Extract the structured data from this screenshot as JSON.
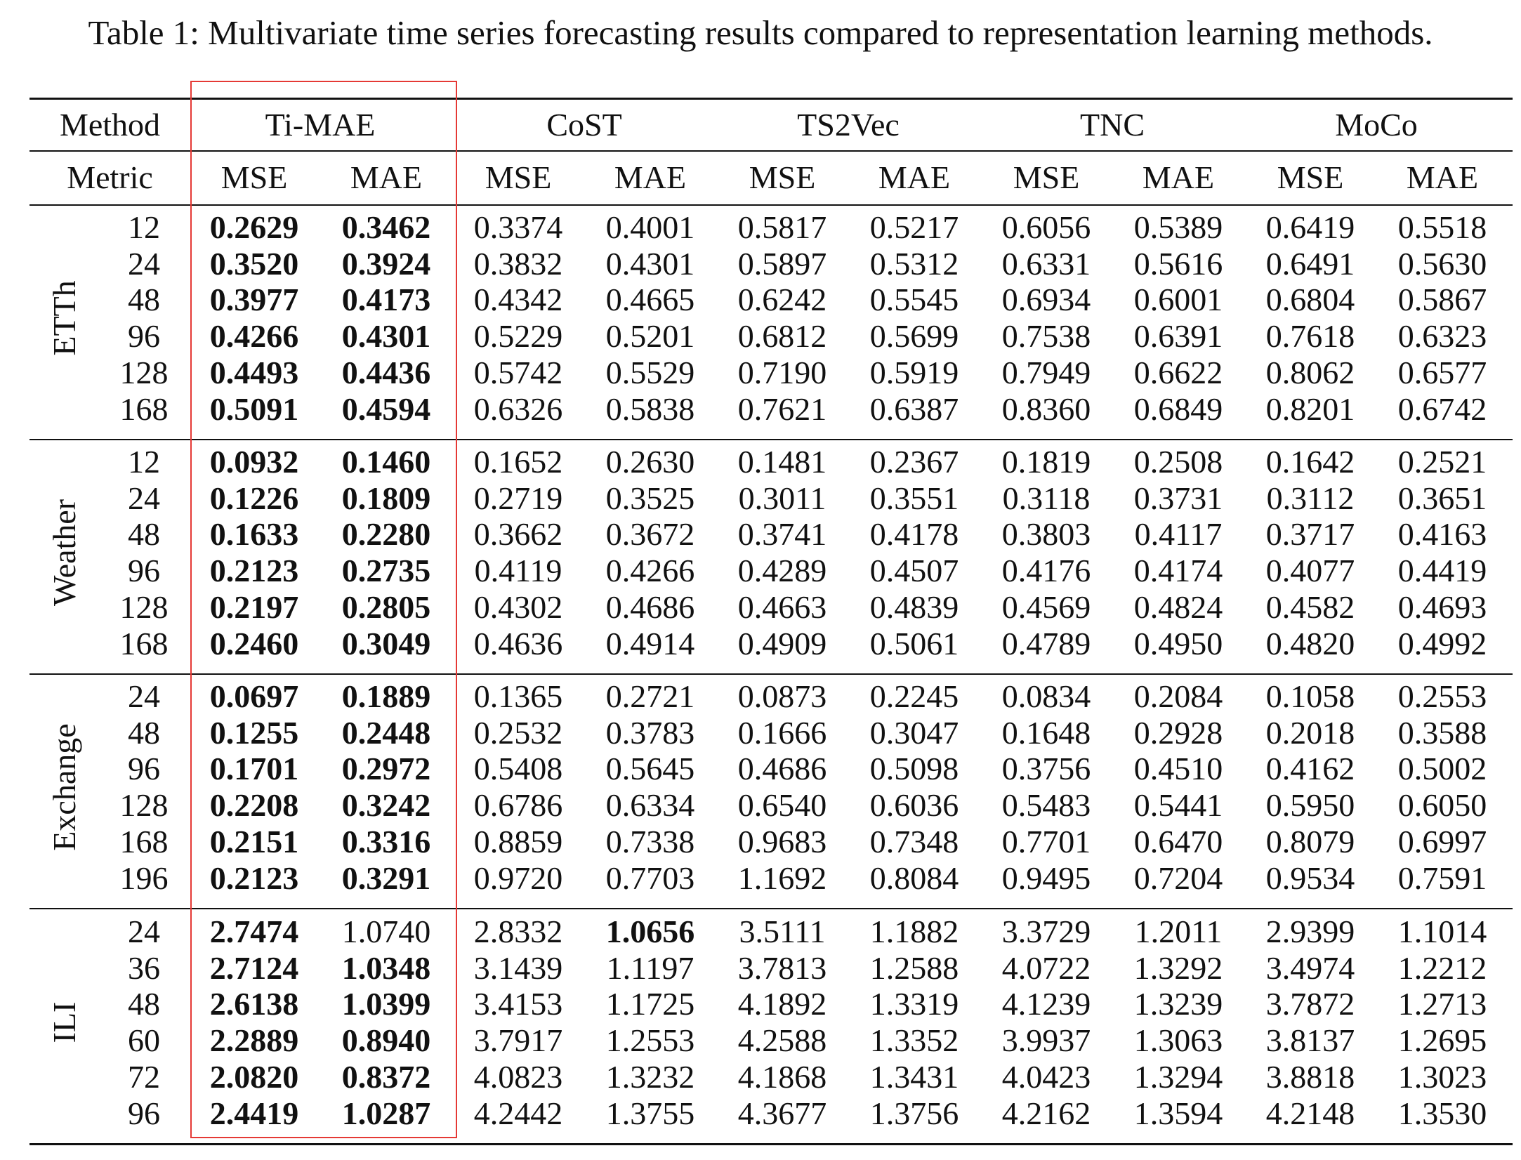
{
  "caption": "Table 1: Multivariate time series forecasting results compared to representation learning methods.",
  "header": {
    "method_label": "Method",
    "metric_label": "Metric",
    "methods": [
      "Ti-MAE",
      "CoST",
      "TS2Vec",
      "TNC",
      "MoCo"
    ],
    "metrics": [
      "MSE",
      "MAE",
      "MSE",
      "MAE",
      "MSE",
      "MAE",
      "MSE",
      "MAE",
      "MSE",
      "MAE"
    ]
  },
  "groups": [
    {
      "dataset": "ETTh",
      "rows": [
        {
          "horizon": "12",
          "values": [
            "0.2629",
            "0.3462",
            "0.3374",
            "0.4001",
            "0.5817",
            "0.5217",
            "0.6056",
            "0.5389",
            "0.6419",
            "0.5518"
          ],
          "bold": [
            0,
            1
          ]
        },
        {
          "horizon": "24",
          "values": [
            "0.3520",
            "0.3924",
            "0.3832",
            "0.4301",
            "0.5897",
            "0.5312",
            "0.6331",
            "0.5616",
            "0.6491",
            "0.5630"
          ],
          "bold": [
            0,
            1
          ]
        },
        {
          "horizon": "48",
          "values": [
            "0.3977",
            "0.4173",
            "0.4342",
            "0.4665",
            "0.6242",
            "0.5545",
            "0.6934",
            "0.6001",
            "0.6804",
            "0.5867"
          ],
          "bold": [
            0,
            1
          ]
        },
        {
          "horizon": "96",
          "values": [
            "0.4266",
            "0.4301",
            "0.5229",
            "0.5201",
            "0.6812",
            "0.5699",
            "0.7538",
            "0.6391",
            "0.7618",
            "0.6323"
          ],
          "bold": [
            0,
            1
          ]
        },
        {
          "horizon": "128",
          "values": [
            "0.4493",
            "0.4436",
            "0.5742",
            "0.5529",
            "0.7190",
            "0.5919",
            "0.7949",
            "0.6622",
            "0.8062",
            "0.6577"
          ],
          "bold": [
            0,
            1
          ]
        },
        {
          "horizon": "168",
          "values": [
            "0.5091",
            "0.4594",
            "0.6326",
            "0.5838",
            "0.7621",
            "0.6387",
            "0.8360",
            "0.6849",
            "0.8201",
            "0.6742"
          ],
          "bold": [
            0,
            1
          ]
        }
      ]
    },
    {
      "dataset": "Weather",
      "rows": [
        {
          "horizon": "12",
          "values": [
            "0.0932",
            "0.1460",
            "0.1652",
            "0.2630",
            "0.1481",
            "0.2367",
            "0.1819",
            "0.2508",
            "0.1642",
            "0.2521"
          ],
          "bold": [
            0,
            1
          ]
        },
        {
          "horizon": "24",
          "values": [
            "0.1226",
            "0.1809",
            "0.2719",
            "0.3525",
            "0.3011",
            "0.3551",
            "0.3118",
            "0.3731",
            "0.3112",
            "0.3651"
          ],
          "bold": [
            0,
            1
          ]
        },
        {
          "horizon": "48",
          "values": [
            "0.1633",
            "0.2280",
            "0.3662",
            "0.3672",
            "0.3741",
            "0.4178",
            "0.3803",
            "0.4117",
            "0.3717",
            "0.4163"
          ],
          "bold": [
            0,
            1
          ]
        },
        {
          "horizon": "96",
          "values": [
            "0.2123",
            "0.2735",
            "0.4119",
            "0.4266",
            "0.4289",
            "0.4507",
            "0.4176",
            "0.4174",
            "0.4077",
            "0.4419"
          ],
          "bold": [
            0,
            1
          ]
        },
        {
          "horizon": "128",
          "values": [
            "0.2197",
            "0.2805",
            "0.4302",
            "0.4686",
            "0.4663",
            "0.4839",
            "0.4569",
            "0.4824",
            "0.4582",
            "0.4693"
          ],
          "bold": [
            0,
            1
          ]
        },
        {
          "horizon": "168",
          "values": [
            "0.2460",
            "0.3049",
            "0.4636",
            "0.4914",
            "0.4909",
            "0.5061",
            "0.4789",
            "0.4950",
            "0.4820",
            "0.4992"
          ],
          "bold": [
            0,
            1
          ]
        }
      ]
    },
    {
      "dataset": "Exchange",
      "rows": [
        {
          "horizon": "24",
          "values": [
            "0.0697",
            "0.1889",
            "0.1365",
            "0.2721",
            "0.0873",
            "0.2245",
            "0.0834",
            "0.2084",
            "0.1058",
            "0.2553"
          ],
          "bold": [
            0,
            1
          ]
        },
        {
          "horizon": "48",
          "values": [
            "0.1255",
            "0.2448",
            "0.2532",
            "0.3783",
            "0.1666",
            "0.3047",
            "0.1648",
            "0.2928",
            "0.2018",
            "0.3588"
          ],
          "bold": [
            0,
            1
          ]
        },
        {
          "horizon": "96",
          "values": [
            "0.1701",
            "0.2972",
            "0.5408",
            "0.5645",
            "0.4686",
            "0.5098",
            "0.3756",
            "0.4510",
            "0.4162",
            "0.5002"
          ],
          "bold": [
            0,
            1
          ]
        },
        {
          "horizon": "128",
          "values": [
            "0.2208",
            "0.3242",
            "0.6786",
            "0.6334",
            "0.6540",
            "0.6036",
            "0.5483",
            "0.5441",
            "0.5950",
            "0.6050"
          ],
          "bold": [
            0,
            1
          ]
        },
        {
          "horizon": "168",
          "values": [
            "0.2151",
            "0.3316",
            "0.8859",
            "0.7338",
            "0.9683",
            "0.7348",
            "0.7701",
            "0.6470",
            "0.8079",
            "0.6997"
          ],
          "bold": [
            0,
            1
          ]
        },
        {
          "horizon": "196",
          "values": [
            "0.2123",
            "0.3291",
            "0.9720",
            "0.7703",
            "1.1692",
            "0.8084",
            "0.9495",
            "0.7204",
            "0.9534",
            "0.7591"
          ],
          "bold": [
            0,
            1
          ]
        }
      ]
    },
    {
      "dataset": "ILI",
      "rows": [
        {
          "horizon": "24",
          "values": [
            "2.7474",
            "1.0740",
            "2.8332",
            "1.0656",
            "3.5111",
            "1.1882",
            "3.3729",
            "1.2011",
            "2.9399",
            "1.1014"
          ],
          "bold": [
            0,
            3
          ]
        },
        {
          "horizon": "36",
          "values": [
            "2.7124",
            "1.0348",
            "3.1439",
            "1.1197",
            "3.7813",
            "1.2588",
            "4.0722",
            "1.3292",
            "3.4974",
            "1.2212"
          ],
          "bold": [
            0,
            1
          ]
        },
        {
          "horizon": "48",
          "values": [
            "2.6138",
            "1.0399",
            "3.4153",
            "1.1725",
            "4.1892",
            "1.3319",
            "4.1239",
            "1.3239",
            "3.7872",
            "1.2713"
          ],
          "bold": [
            0,
            1
          ]
        },
        {
          "horizon": "60",
          "values": [
            "2.2889",
            "0.8940",
            "3.7917",
            "1.2553",
            "4.2588",
            "1.3352",
            "3.9937",
            "1.3063",
            "3.8137",
            "1.2695"
          ],
          "bold": [
            0,
            1
          ]
        },
        {
          "horizon": "72",
          "values": [
            "2.0820",
            "0.8372",
            "4.0823",
            "1.3232",
            "4.1868",
            "1.3431",
            "4.0423",
            "1.3294",
            "3.8818",
            "1.3023"
          ],
          "bold": [
            0,
            1
          ]
        },
        {
          "horizon": "96",
          "values": [
            "2.4419",
            "1.0287",
            "4.2442",
            "1.3755",
            "4.3677",
            "1.3756",
            "4.2162",
            "1.3594",
            "4.2148",
            "1.3530"
          ],
          "bold": [
            0,
            1
          ]
        }
      ]
    }
  ]
}
